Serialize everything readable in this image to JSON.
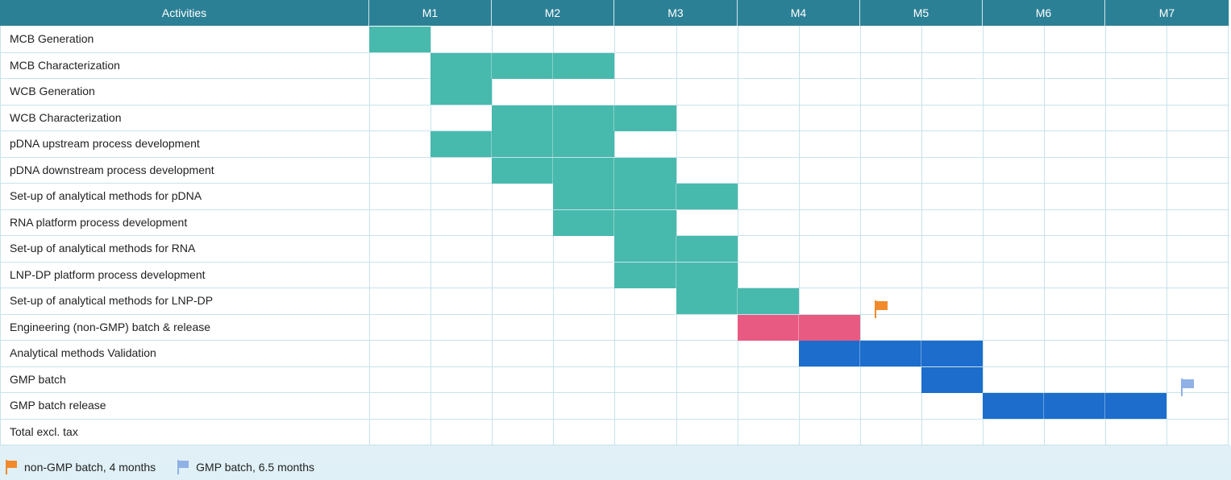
{
  "header": {
    "activities_label": "Activities",
    "months": [
      "M1",
      "M2",
      "M3",
      "M4",
      "M5",
      "M6",
      "M7"
    ]
  },
  "colors": {
    "header_bg": "#2c8095",
    "bar_teal": "#48b9ad",
    "bar_pink": "#e85a82",
    "bar_blue": "#1c6dcc",
    "flag_orange": "#f08a2b",
    "flag_lightblue": "#8fb1e6"
  },
  "activities": [
    {
      "label": "MCB Generation",
      "start_half": 0,
      "end_half": 1,
      "color": "#48b9ad"
    },
    {
      "label": "MCB Characterization",
      "start_half": 1,
      "end_half": 4,
      "color": "#48b9ad"
    },
    {
      "label": "WCB Generation",
      "start_half": 1,
      "end_half": 2,
      "color": "#48b9ad"
    },
    {
      "label": "WCB Characterization",
      "start_half": 2,
      "end_half": 5,
      "color": "#48b9ad"
    },
    {
      "label": "pDNA upstream process development",
      "start_half": 1,
      "end_half": 4,
      "color": "#48b9ad"
    },
    {
      "label": "pDNA downstream process development",
      "start_half": 2,
      "end_half": 5,
      "color": "#48b9ad"
    },
    {
      "label": "Set-up of analytical methods for pDNA",
      "start_half": 3,
      "end_half": 6,
      "color": "#48b9ad"
    },
    {
      "label": "RNA platform process development",
      "start_half": 3,
      "end_half": 5,
      "color": "#48b9ad"
    },
    {
      "label": "Set-up of analytical methods for RNA",
      "start_half": 4,
      "end_half": 6,
      "color": "#48b9ad"
    },
    {
      "label": "LNP-DP platform process development",
      "start_half": 4,
      "end_half": 6,
      "color": "#48b9ad"
    },
    {
      "label": "Set-up of analytical methods for LNP-DP",
      "start_half": 5,
      "end_half": 7,
      "color": "#48b9ad"
    },
    {
      "label": "Engineering (non-GMP) batch & release",
      "start_half": 6,
      "end_half": 8,
      "color": "#e85a82"
    },
    {
      "label": "Analytical methods Validation",
      "start_half": 7,
      "end_half": 10,
      "color": "#1c6dcc"
    },
    {
      "label": "GMP batch",
      "start_half": 9,
      "end_half": 10,
      "color": "#1c6dcc"
    },
    {
      "label": "GMP batch release",
      "start_half": 10,
      "end_half": 13,
      "color": "#1c6dcc"
    },
    {
      "label": "Total excl. tax",
      "start_half": null,
      "end_half": null,
      "color": null
    }
  ],
  "milestones": [
    {
      "name": "non-GMP batch",
      "month": 4,
      "row": 11,
      "icon": "flag-icon",
      "color": "#f08a2b"
    },
    {
      "name": "GMP batch",
      "month": 6.5,
      "row": 14,
      "icon": "flag-icon",
      "color": "#8fb1e6"
    }
  ],
  "legend": [
    {
      "label": "non-GMP batch, 4 months",
      "icon": "flag-icon",
      "color": "#f08a2b"
    },
    {
      "label": "GMP batch, 6.5 months",
      "icon": "flag-icon",
      "color": "#8fb1e6"
    }
  ]
}
